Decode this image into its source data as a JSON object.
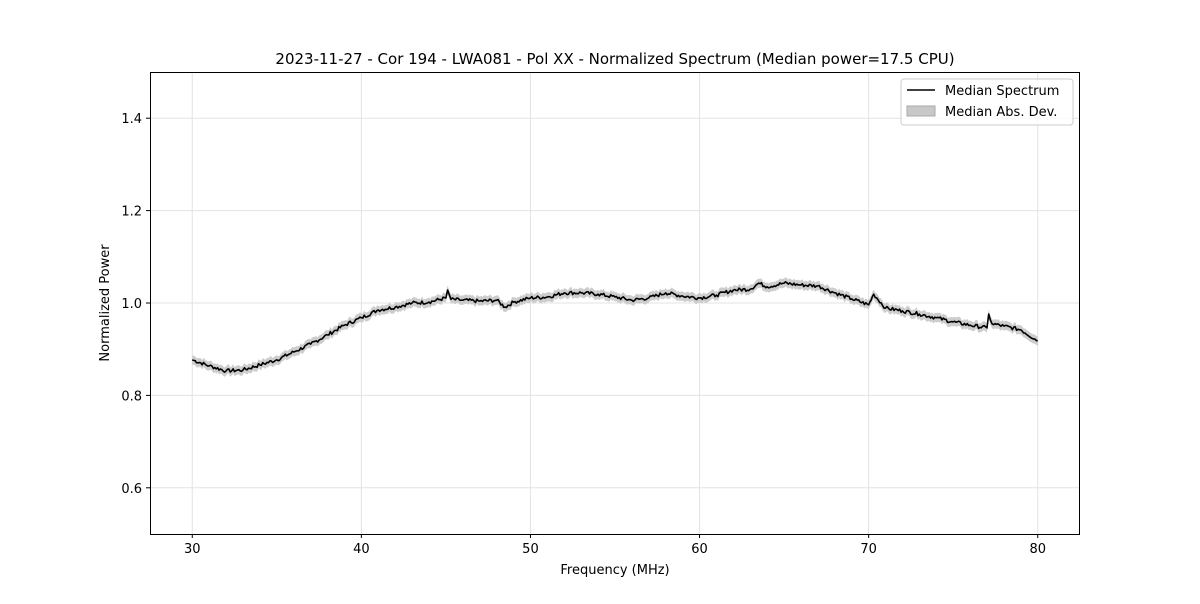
{
  "chart_data": {
    "type": "line",
    "title": "2023-11-27 - Cor 194 - LWA081 - Pol XX - Normalized Spectrum (Median power=17.5 CPU)",
    "xlabel": "Frequency (MHz)",
    "ylabel": "Normalized Power",
    "xlim": [
      27.5,
      82.5
    ],
    "ylim": [
      0.5,
      1.5
    ],
    "xticks": [
      30,
      40,
      50,
      60,
      70,
      80
    ],
    "xtick_labels": [
      "30",
      "40",
      "50",
      "60",
      "70",
      "80"
    ],
    "yticks": [
      0.6,
      0.8,
      1.0,
      1.2,
      1.4
    ],
    "ytick_labels": [
      "0.6",
      "0.8",
      "1.0",
      "1.2",
      "1.4"
    ],
    "grid": true,
    "legend_position": "top-right",
    "series": [
      {
        "name": "Median Spectrum",
        "color": "#000000",
        "x": [
          30,
          31,
          32,
          33,
          34,
          35,
          36,
          37,
          38,
          39,
          40,
          41,
          42,
          43,
          44,
          45,
          45.1,
          45.3,
          46,
          47,
          48,
          48.5,
          49,
          50,
          51,
          52,
          53,
          54,
          55,
          56,
          57,
          58,
          59,
          60,
          61,
          62,
          63,
          63.5,
          64,
          65,
          66,
          67,
          68,
          69,
          70,
          70.3,
          71,
          72,
          73,
          74,
          75,
          76,
          77,
          77.1,
          77.3,
          78,
          79,
          80
        ],
        "y": [
          0.877,
          0.864,
          0.853,
          0.855,
          0.866,
          0.877,
          0.894,
          0.911,
          0.931,
          0.952,
          0.968,
          0.985,
          0.991,
          1.0,
          1.002,
          1.011,
          1.028,
          1.008,
          1.006,
          1.004,
          1.006,
          0.991,
          1.002,
          1.011,
          1.013,
          1.022,
          1.022,
          1.019,
          1.013,
          1.006,
          1.011,
          1.022,
          1.015,
          1.011,
          1.017,
          1.028,
          1.03,
          1.043,
          1.035,
          1.043,
          1.039,
          1.037,
          1.022,
          1.009,
          0.996,
          1.019,
          0.989,
          0.983,
          0.976,
          0.968,
          0.959,
          0.952,
          0.946,
          0.976,
          0.955,
          0.95,
          0.942,
          0.918
        ]
      },
      {
        "name": "Median Abs. Dev.",
        "color": "#c8c8c8",
        "band_halfwidth": 0.01
      }
    ]
  }
}
